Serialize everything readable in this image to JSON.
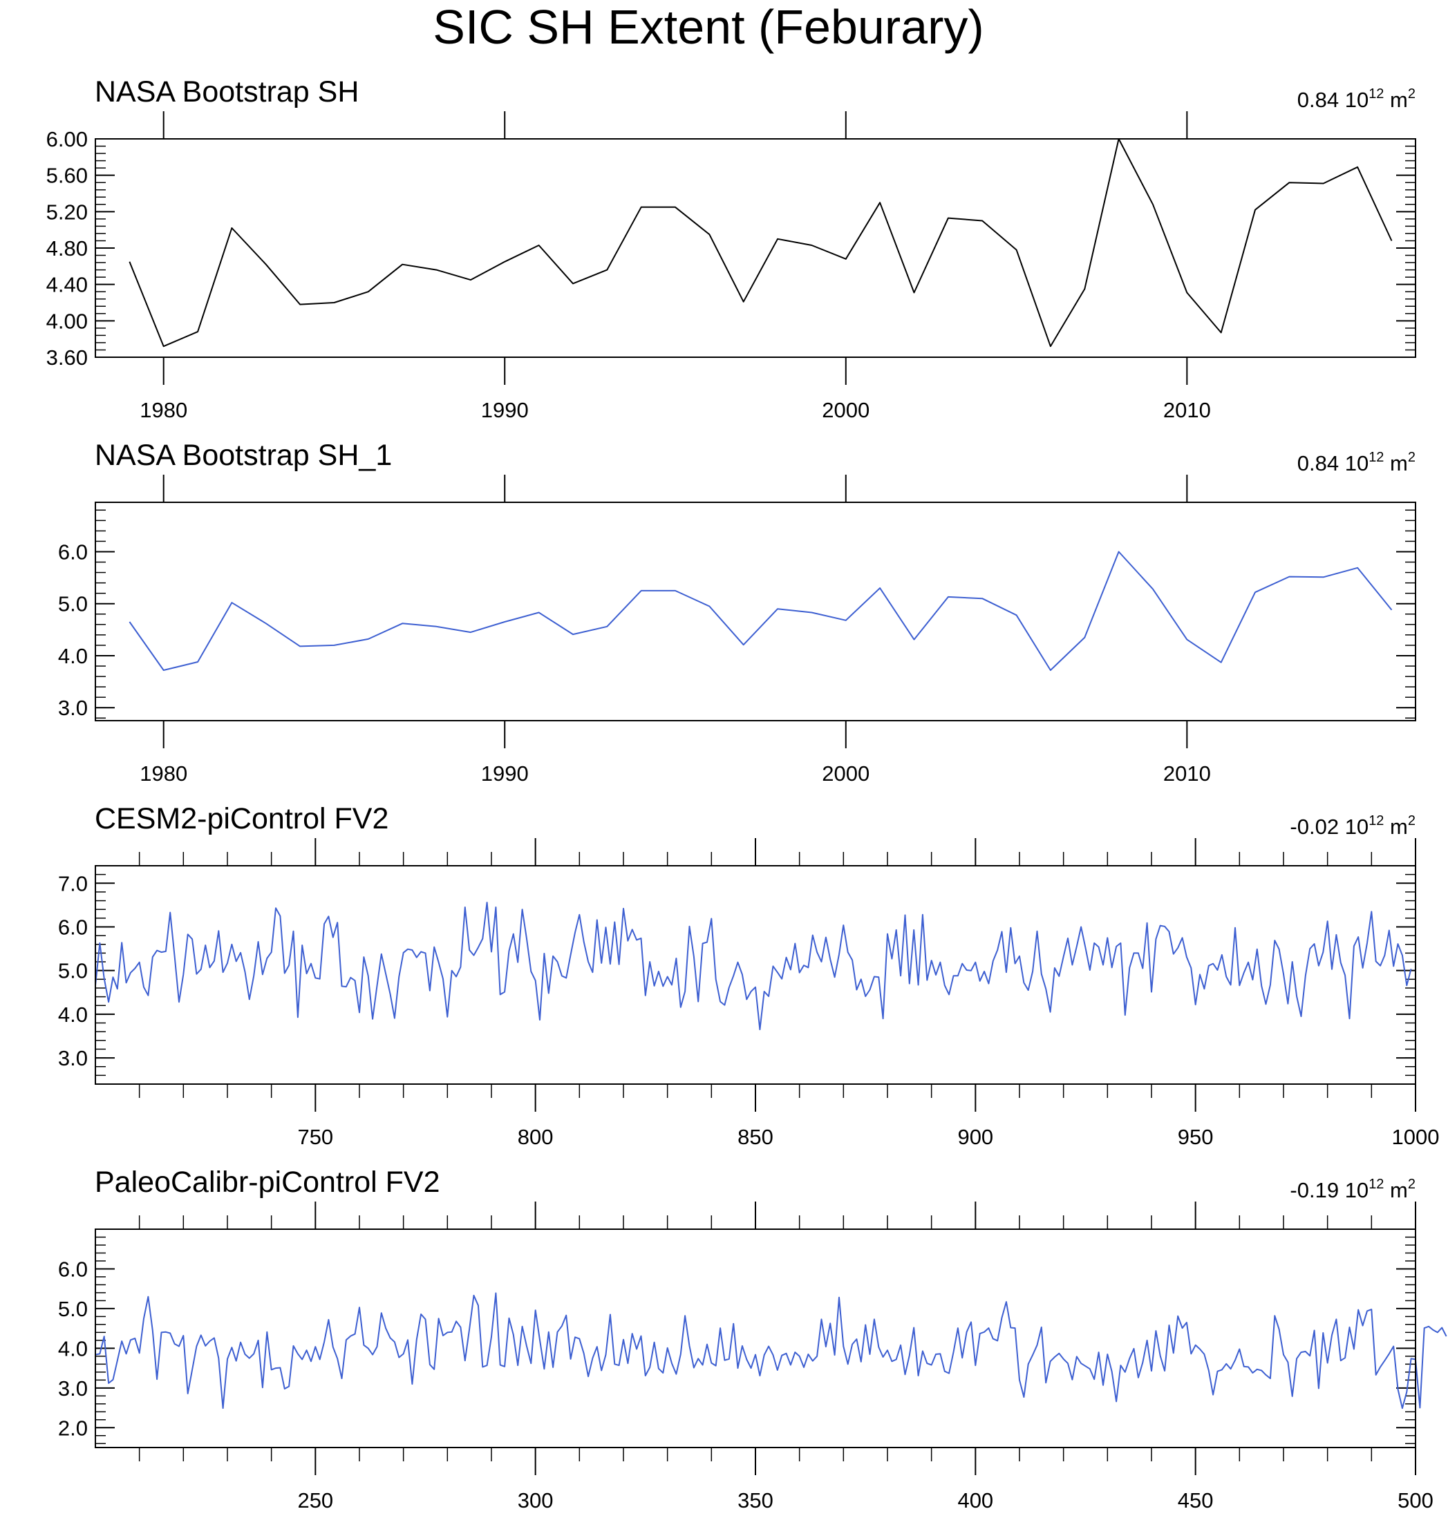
{
  "figure_title": "SIC SH Extent (Feburary)",
  "chart_data": [
    {
      "type": "line",
      "title": "NASA Bootstrap SH",
      "stat_value": "0.84",
      "stat_units": "10",
      "stat_exp": "12",
      "stat_m": "m",
      "stat_m_exp": "2",
      "line_color": "#000000",
      "xlim": [
        1978,
        2016.7
      ],
      "ylim": [
        3.6,
        6.0
      ],
      "yticks": [
        3.6,
        4.0,
        4.4,
        4.8,
        5.2,
        5.6,
        6.0
      ],
      "ytick_labels": [
        "3.60",
        "4.00",
        "4.40",
        "4.80",
        "5.20",
        "5.60",
        "6.00"
      ],
      "yminor_step": 0.08,
      "xticks": [
        1980,
        1990,
        2000,
        2010
      ],
      "xtick_labels": [
        "1980",
        "1990",
        "2000",
        "2010"
      ],
      "xminor": [],
      "x_start": 1979,
      "x_step": 1,
      "values": [
        4.65,
        3.72,
        3.88,
        5.02,
        4.62,
        4.18,
        4.2,
        4.32,
        4.62,
        4.56,
        4.45,
        4.65,
        4.83,
        4.41,
        4.56,
        5.25,
        5.25,
        4.95,
        4.21,
        4.9,
        4.83,
        4.68,
        5.3,
        4.31,
        5.13,
        5.1,
        4.78,
        3.72,
        4.35,
        6.0,
        5.28,
        4.31,
        3.87,
        5.22,
        5.52,
        5.51,
        5.69,
        4.88
      ]
    },
    {
      "type": "line",
      "title": "NASA Bootstrap SH_1",
      "stat_value": "0.84",
      "stat_units": "10",
      "stat_exp": "12",
      "stat_m": "m",
      "stat_m_exp": "2",
      "line_color": "#3d5fd1",
      "xlim": [
        1978,
        2016.7
      ],
      "ylim": [
        2.75,
        6.95
      ],
      "yticks": [
        3.0,
        4.0,
        5.0,
        6.0
      ],
      "ytick_labels": [
        "3.0",
        "4.0",
        "5.0",
        "6.0"
      ],
      "yminor_step": 0.2,
      "xticks": [
        1980,
        1990,
        2000,
        2010
      ],
      "xtick_labels": [
        "1980",
        "1990",
        "2000",
        "2010"
      ],
      "xminor": [],
      "x_start": 1979,
      "x_step": 1,
      "values": [
        4.65,
        3.72,
        3.88,
        5.02,
        4.62,
        4.18,
        4.2,
        4.32,
        4.62,
        4.56,
        4.45,
        4.65,
        4.83,
        4.41,
        4.56,
        5.25,
        5.25,
        4.95,
        4.21,
        4.9,
        4.83,
        4.68,
        5.3,
        4.31,
        5.13,
        5.1,
        4.78,
        3.72,
        4.35,
        6.0,
        5.28,
        4.31,
        3.87,
        5.22,
        5.52,
        5.51,
        5.69,
        4.88
      ]
    },
    {
      "type": "line",
      "title": "CESM2-piControl FV2",
      "stat_value": "-0.02",
      "stat_units": "10",
      "stat_exp": "12",
      "stat_m": "m",
      "stat_m_exp": "2",
      "line_color": "#3d5fd1",
      "xlim": [
        700,
        1000
      ],
      "ylim": [
        2.4,
        7.4
      ],
      "yticks": [
        3.0,
        4.0,
        5.0,
        6.0,
        7.0
      ],
      "ytick_labels": [
        "3.0",
        "4.0",
        "5.0",
        "6.0",
        "7.0"
      ],
      "yminor_step": 0.2,
      "xticks": [
        750,
        800,
        850,
        900,
        950,
        1000
      ],
      "xtick_labels": [
        "750",
        "800",
        "850",
        "900",
        "950",
        "1000"
      ],
      "xminor": [
        710,
        720,
        730,
        740,
        760,
        770,
        780,
        790,
        810,
        820,
        830,
        840,
        860,
        870,
        880,
        890,
        910,
        920,
        930,
        940,
        960,
        970,
        980,
        990
      ],
      "x_start": 700,
      "x_step": 1,
      "values": [
        4.66,
        5.63,
        4.82,
        4.28,
        4.85,
        4.58,
        5.64,
        4.72,
        4.95,
        5.05,
        5.19,
        4.62,
        4.43,
        5.31,
        5.46,
        5.42,
        5.44,
        6.33,
        5.33,
        4.28,
        4.91,
        5.83,
        5.72,
        4.92,
        5.03,
        5.58,
        5.07,
        5.22,
        5.91,
        4.96,
        5.17,
        5.6,
        5.21,
        5.41,
        4.97,
        4.34,
        4.88,
        5.66,
        4.91,
        5.28,
        5.42,
        6.43,
        6.25,
        4.94,
        5.12,
        5.9,
        3.93,
        5.58,
        4.93,
        5.16,
        4.83,
        4.81,
        6.07,
        6.24,
        5.76,
        6.1,
        4.64,
        4.63,
        4.84,
        4.77,
        4.04,
        5.31,
        4.88,
        3.89,
        4.65,
        5.38,
        4.92,
        4.46,
        3.91,
        4.86,
        5.41,
        5.49,
        5.47,
        5.3,
        5.43,
        5.4,
        4.54,
        5.54,
        5.19,
        4.81,
        3.94,
        5.0,
        4.86,
        5.08,
        6.45,
        5.47,
        5.35,
        5.53,
        5.73,
        6.56,
        5.43,
        6.45,
        4.45,
        4.51,
        5.45,
        5.84,
        5.19,
        6.4,
        5.74,
        4.98,
        4.77,
        3.87,
        5.39,
        4.48,
        5.33,
        5.2,
        4.88,
        4.83,
        5.36,
        5.87,
        6.28,
        5.66,
        5.2,
        4.96,
        6.16,
        5.17,
        5.99,
        5.15,
        6.11,
        5.14,
        6.42,
        5.68,
        5.94,
        5.7,
        5.74,
        4.43,
        5.2,
        4.65,
        4.98,
        4.64,
        4.86,
        4.67,
        5.28,
        4.16,
        4.52,
        6.01,
        5.32,
        4.29,
        5.62,
        5.65,
        6.19,
        4.8,
        4.29,
        4.21,
        4.61,
        4.88,
        5.19,
        4.91,
        4.34,
        4.52,
        4.62,
        3.65,
        4.52,
        4.41,
        5.1,
        4.96,
        4.81,
        5.3,
        5.02,
        5.62,
        4.95,
        5.12,
        5.07,
        5.81,
        5.42,
        5.2,
        5.76,
        5.26,
        4.85,
        5.37,
        6.04,
        5.42,
        5.24,
        4.56,
        4.8,
        4.41,
        4.56,
        4.86,
        4.85,
        3.9,
        5.84,
        5.27,
        5.93,
        4.88,
        6.27,
        4.7,
        5.93,
        4.67,
        6.28,
        4.78,
        5.23,
        4.9,
        5.19,
        4.66,
        4.45,
        4.88,
        4.88,
        5.16,
        5.01,
        5.0,
        5.19,
        4.76,
        4.98,
        4.7,
        5.22,
        5.47,
        5.89,
        4.96,
        5.98,
        5.16,
        5.33,
        4.72,
        4.55,
        4.98,
        5.9,
        4.92,
        4.58,
        4.05,
        5.06,
        4.87,
        5.32,
        5.74,
        5.13,
        5.55,
        6.0,
        5.52,
        5.01,
        5.63,
        5.54,
        5.13,
        5.75,
        5.07,
        5.55,
        5.63,
        3.98,
        5.06,
        5.4,
        5.4,
        5.05,
        6.09,
        4.51,
        5.72,
        6.03,
        6.01,
        5.89,
        5.38,
        5.52,
        5.75,
        5.31,
        5.06,
        4.22,
        4.91,
        4.58,
        5.11,
        5.16,
        5.01,
        5.36,
        4.86,
        4.67,
        5.98,
        4.66,
        4.95,
        5.19,
        4.79,
        5.49,
        4.65,
        4.23,
        4.67,
        5.69,
        5.49,
        4.92,
        4.24,
        5.2,
        4.41,
        3.95,
        4.88,
        5.5,
        5.61,
        5.11,
        5.42,
        6.13,
        5.03,
        5.82,
        5.18,
        4.89,
        3.9,
        5.56,
        5.77,
        5.06,
        5.63,
        6.35,
        5.21,
        5.11,
        5.35,
        5.92,
        5.1,
        5.61,
        5.35,
        4.66,
        5.04
      ]
    },
    {
      "type": "line",
      "title": "PaleoCalibr-piControl FV2",
      "stat_value": "-0.19",
      "stat_units": "10",
      "stat_exp": "12",
      "stat_m": "m",
      "stat_m_exp": "2",
      "line_color": "#3d5fd1",
      "xlim": [
        200,
        500
      ],
      "ylim": [
        1.5,
        7.0
      ],
      "yticks": [
        2.0,
        3.0,
        4.0,
        5.0,
        6.0
      ],
      "ytick_labels": [
        "2.0",
        "3.0",
        "4.0",
        "5.0",
        "6.0"
      ],
      "yminor_step": 0.2,
      "xticks": [
        250,
        300,
        350,
        400,
        450,
        500
      ],
      "xtick_labels": [
        "250",
        "300",
        "350",
        "400",
        "450",
        "500"
      ],
      "xminor": [
        210,
        220,
        230,
        240,
        260,
        270,
        280,
        290,
        310,
        320,
        330,
        340,
        360,
        370,
        380,
        390,
        410,
        420,
        430,
        440,
        460,
        470,
        480,
        490
      ],
      "x_start": 200,
      "x_step": 1,
      "values": [
        3.84,
        3.86,
        4.3,
        3.12,
        3.21,
        3.69,
        4.18,
        3.86,
        4.21,
        4.25,
        3.88,
        4.75,
        5.3,
        4.45,
        3.22,
        4.4,
        4.41,
        4.38,
        4.11,
        4.05,
        4.32,
        2.86,
        3.46,
        4.05,
        4.33,
        4.06,
        4.18,
        4.26,
        3.75,
        2.49,
        3.73,
        4.02,
        3.68,
        4.15,
        3.85,
        3.75,
        3.86,
        4.2,
        3.01,
        4.41,
        3.46,
        3.5,
        3.51,
        2.98,
        3.04,
        4.06,
        3.86,
        3.72,
        3.95,
        3.67,
        4.04,
        3.72,
        4.16,
        4.72,
        4.03,
        3.74,
        3.24,
        4.21,
        4.31,
        4.36,
        5.03,
        4.08,
        4.0,
        3.84,
        4.04,
        4.89,
        4.5,
        4.26,
        4.16,
        3.77,
        3.86,
        4.21,
        3.1,
        4.22,
        4.86,
        4.73,
        3.59,
        3.47,
        4.75,
        4.32,
        4.4,
        4.41,
        4.68,
        4.53,
        3.69,
        4.49,
        5.33,
        5.08,
        3.53,
        3.57,
        4.29,
        5.39,
        3.58,
        3.54,
        4.76,
        4.34,
        3.57,
        4.55,
        4.06,
        3.62,
        4.96,
        4.21,
        3.48,
        4.41,
        3.52,
        4.41,
        4.56,
        4.83,
        3.73,
        4.28,
        4.24,
        3.87,
        3.29,
        3.75,
        4.04,
        3.44,
        3.84,
        4.85,
        3.6,
        3.57,
        4.22,
        3.62,
        4.37,
        3.98,
        4.31,
        3.31,
        3.52,
        4.15,
        3.49,
        3.38,
        4.01,
        3.62,
        3.35,
        3.85,
        4.82,
        4.06,
        3.51,
        3.74,
        3.58,
        4.1,
        3.63,
        3.56,
        4.51,
        3.7,
        3.73,
        4.62,
        3.5,
        4.06,
        3.72,
        3.5,
        3.84,
        3.31,
        3.83,
        4.05,
        3.83,
        3.45,
        3.82,
        3.87,
        3.58,
        3.9,
        3.8,
        3.52,
        3.85,
        3.68,
        3.8,
        4.73,
        4.04,
        4.63,
        3.83,
        5.28,
        4.05,
        3.6,
        4.1,
        4.23,
        3.66,
        4.59,
        3.85,
        4.73,
        4.03,
        3.78,
        3.95,
        3.67,
        3.72,
        4.08,
        3.34,
        3.82,
        4.52,
        3.31,
        3.93,
        3.62,
        3.58,
        3.85,
        3.86,
        3.42,
        3.37,
        3.9,
        4.51,
        3.76,
        4.41,
        4.66,
        3.57,
        4.37,
        4.41,
        4.51,
        4.24,
        4.19,
        4.77,
        5.17,
        4.52,
        4.51,
        3.2,
        2.77,
        3.6,
        3.83,
        4.08,
        4.53,
        3.13,
        3.67,
        3.78,
        3.87,
        3.73,
        3.62,
        3.21,
        3.79,
        3.62,
        3.55,
        3.48,
        3.22,
        3.9,
        3.07,
        3.85,
        3.41,
        2.66,
        3.57,
        3.4,
        3.74,
        3.99,
        3.26,
        3.64,
        4.2,
        3.43,
        4.44,
        3.81,
        3.43,
        4.58,
        3.88,
        4.81,
        4.51,
        4.65,
        3.86,
        4.08,
        3.98,
        3.85,
        3.44,
        2.83,
        3.42,
        3.46,
        3.61,
        3.48,
        3.7,
        3.98,
        3.54,
        3.53,
        3.38,
        3.47,
        3.44,
        3.33,
        3.24,
        4.82,
        4.48,
        3.84,
        3.65,
        2.79,
        3.74,
        3.9,
        3.92,
        3.81,
        4.45,
        2.99,
        4.39,
        3.63,
        4.33,
        4.73,
        3.69,
        3.76,
        4.53,
        3.98,
        4.97,
        4.57,
        4.94,
        4.98,
        3.33,
        3.53,
        3.69,
        3.86,
        4.05,
        2.97,
        2.49,
        2.9,
        3.74,
        3.72,
        2.5,
        4.51,
        4.55,
        4.46,
        4.4,
        4.52,
        4.3
      ]
    }
  ]
}
